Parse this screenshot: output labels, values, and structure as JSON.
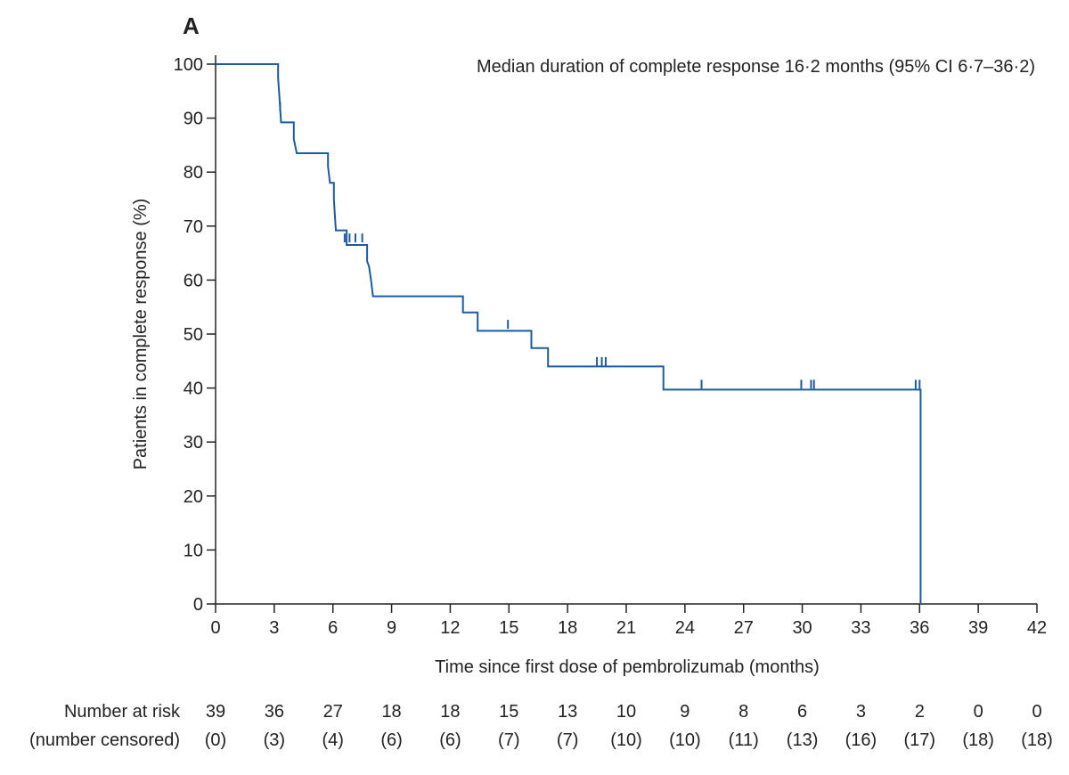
{
  "chart_data": {
    "type": "line",
    "subtype": "kaplan-meier",
    "panel_label": "A",
    "annotation": "Median duration of complete response 16·2 months (95% CI 6·7–36·2)",
    "xlabel": "Time since first dose of pembrolizumab (months)",
    "ylabel": "Patients in complete response (%)",
    "xlim": [
      0,
      42
    ],
    "ylim": [
      0,
      100
    ],
    "x_ticks": [
      0,
      3,
      6,
      9,
      12,
      15,
      18,
      21,
      24,
      27,
      30,
      33,
      36,
      39,
      42
    ],
    "y_ticks": [
      0,
      10,
      20,
      30,
      40,
      50,
      60,
      70,
      80,
      90,
      100
    ],
    "grid": false,
    "line_color": "#1f5aa0",
    "series": [
      {
        "steps": [
          [
            0,
            100
          ],
          [
            3.2,
            100
          ],
          [
            3.2,
            97.4
          ],
          [
            3.25,
            94.8
          ],
          [
            3.3,
            92.1
          ],
          [
            3.35,
            89.2
          ],
          [
            4.0,
            89.2
          ],
          [
            4.0,
            86.1
          ],
          [
            4.15,
            83.5
          ],
          [
            5.75,
            83.5
          ],
          [
            5.75,
            81.0
          ],
          [
            5.85,
            78.0
          ],
          [
            6.05,
            78.0
          ],
          [
            6.05,
            75.0
          ],
          [
            6.1,
            72.0
          ],
          [
            6.15,
            69.2
          ],
          [
            6.7,
            69.2
          ],
          [
            6.7,
            66.5
          ],
          [
            7.75,
            66.5
          ],
          [
            7.75,
            63.5
          ],
          [
            7.85,
            62.5
          ],
          [
            7.95,
            60.0
          ],
          [
            8.05,
            57.0
          ],
          [
            12.65,
            57.0
          ],
          [
            12.65,
            54.0
          ],
          [
            13.4,
            54.0
          ],
          [
            13.4,
            50.6
          ],
          [
            16.15,
            50.6
          ],
          [
            16.15,
            47.4
          ],
          [
            17.0,
            47.4
          ],
          [
            17.0,
            44.0
          ],
          [
            22.9,
            44.0
          ],
          [
            22.9,
            39.7
          ],
          [
            36.05,
            39.7
          ],
          [
            36.05,
            0
          ]
        ],
        "censor_marks": [
          [
            3.3,
            92.1
          ],
          [
            6.6,
            67.8
          ],
          [
            6.85,
            67.8
          ],
          [
            7.15,
            67.8
          ],
          [
            7.5,
            67.8
          ],
          [
            14.95,
            51.8
          ],
          [
            19.5,
            44.9
          ],
          [
            19.75,
            44.9
          ],
          [
            19.95,
            44.9
          ],
          [
            24.85,
            40.7
          ],
          [
            29.95,
            40.7
          ],
          [
            30.45,
            40.7
          ],
          [
            30.6,
            40.7
          ],
          [
            35.8,
            40.7
          ],
          [
            36.0,
            40.7
          ]
        ]
      }
    ],
    "risk_table": {
      "label_line1": "Number at risk",
      "label_line2": "(number censored)",
      "at_risk": [
        "39",
        "36",
        "27",
        "18",
        "18",
        "15",
        "13",
        "10",
        "9",
        "8",
        "6",
        "3",
        "2",
        "0",
        "0"
      ],
      "censored": [
        "(0)",
        "(3)",
        "(4)",
        "(6)",
        "(6)",
        "(7)",
        "(7)",
        "(10)",
        "(10)",
        "(11)",
        "(13)",
        "(16)",
        "(17)",
        "(18)",
        "(18)"
      ]
    }
  }
}
